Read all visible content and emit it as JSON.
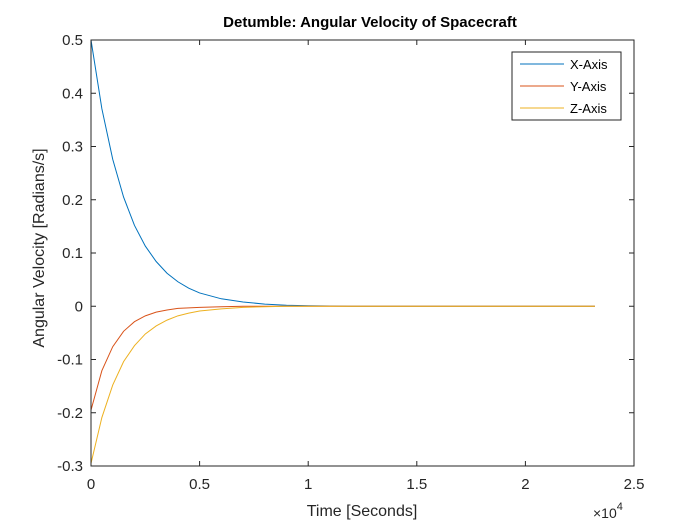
{
  "chart_data": {
    "type": "line",
    "title": "Detumble: Angular Velocity of Spacecraft",
    "xlabel": "Time [Seconds]",
    "ylabel": "Angular Velocity [Radians/s]",
    "x_multiplier": "×10",
    "x_multiplier_exp": "4",
    "xlim": [
      0,
      2.5
    ],
    "ylim": [
      -0.3,
      0.5
    ],
    "xticks": [
      0,
      0.5,
      1,
      1.5,
      2,
      2.5
    ],
    "xtick_labels": [
      "0",
      "0.5",
      "1",
      "1.5",
      "2",
      "2.5"
    ],
    "yticks": [
      -0.3,
      -0.2,
      -0.1,
      0,
      0.1,
      0.2,
      0.3,
      0.4,
      0.5
    ],
    "ytick_labels": [
      "-0.3",
      "-0.2",
      "-0.1",
      "0",
      "0.1",
      "0.2",
      "0.3",
      "0.4",
      "0.5"
    ],
    "grid": false,
    "legend_position": "top-right",
    "x": [
      0,
      0.05,
      0.1,
      0.15,
      0.2,
      0.25,
      0.3,
      0.35,
      0.4,
      0.45,
      0.5,
      0.6,
      0.7,
      0.8,
      0.9,
      1.0,
      1.2,
      1.4,
      1.6,
      1.8,
      2.0,
      2.2,
      2.32
    ],
    "series": [
      {
        "name": "X-Axis",
        "color": "#0072BD",
        "values": [
          0.5,
          0.371,
          0.276,
          0.205,
          0.152,
          0.113,
          0.084,
          0.062,
          0.046,
          0.034,
          0.025,
          0.014,
          0.008,
          0.004,
          0.002,
          0.001,
          0.0,
          0.0,
          0.0,
          0.0,
          0.0,
          0.0,
          0.0
        ]
      },
      {
        "name": "Y-Axis",
        "color": "#D95319",
        "values": [
          -0.195,
          -0.121,
          -0.076,
          -0.047,
          -0.029,
          -0.018,
          -0.011,
          -0.007,
          -0.004,
          -0.003,
          -0.002,
          -0.001,
          0.0,
          0.0,
          0.0,
          0.0,
          0.0,
          0.0,
          0.0,
          0.0,
          0.0,
          0.0,
          0.0
        ]
      },
      {
        "name": "Z-Axis",
        "color": "#EDB120",
        "values": [
          -0.295,
          -0.209,
          -0.148,
          -0.104,
          -0.074,
          -0.052,
          -0.037,
          -0.026,
          -0.018,
          -0.013,
          -0.009,
          -0.005,
          -0.002,
          -0.001,
          0.0,
          0.0,
          0.0,
          0.0,
          0.0,
          0.0,
          0.0,
          0.0,
          0.0
        ]
      }
    ]
  }
}
